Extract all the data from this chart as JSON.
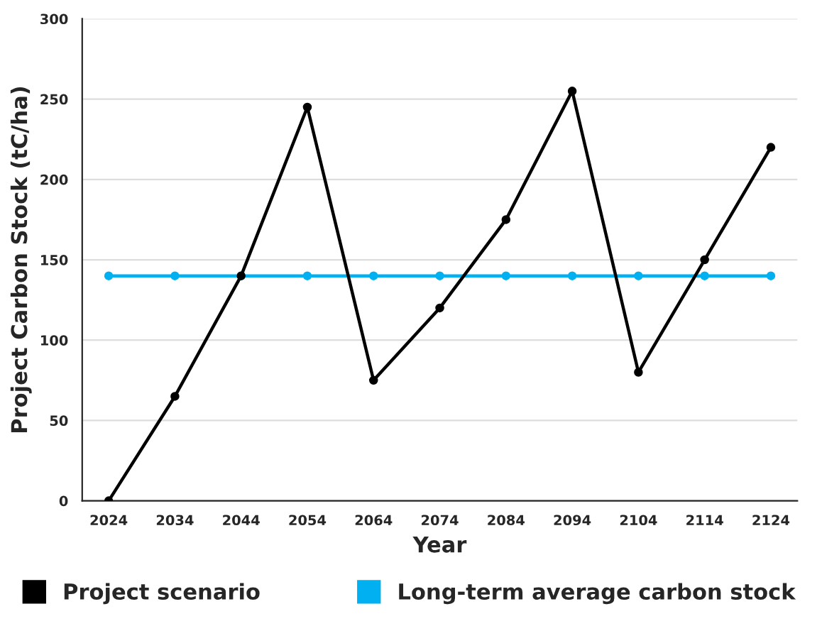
{
  "chart_data": {
    "type": "line",
    "xlabel": "Year",
    "ylabel": "Project Carbon Stock (tC/ha)",
    "categories": [
      "2024",
      "2034",
      "2044",
      "2054",
      "2064",
      "2074",
      "2084",
      "2094",
      "2104",
      "2114",
      "2124"
    ],
    "series": [
      {
        "name": "Project scenario",
        "color": "#000000",
        "values": [
          0,
          65,
          140,
          245,
          75,
          120,
          175,
          255,
          80,
          150,
          220
        ]
      },
      {
        "name": "Long-term average carbon stock",
        "color": "#00b0f0",
        "values": [
          140,
          140,
          140,
          140,
          140,
          140,
          140,
          140,
          140,
          140,
          140
        ]
      }
    ],
    "ylim": [
      0,
      300
    ],
    "yticks": [
      0,
      50,
      100,
      150,
      200,
      250,
      300
    ],
    "grid": "y",
    "legend": "bottom",
    "marker": "circle",
    "line_style": "solid"
  }
}
